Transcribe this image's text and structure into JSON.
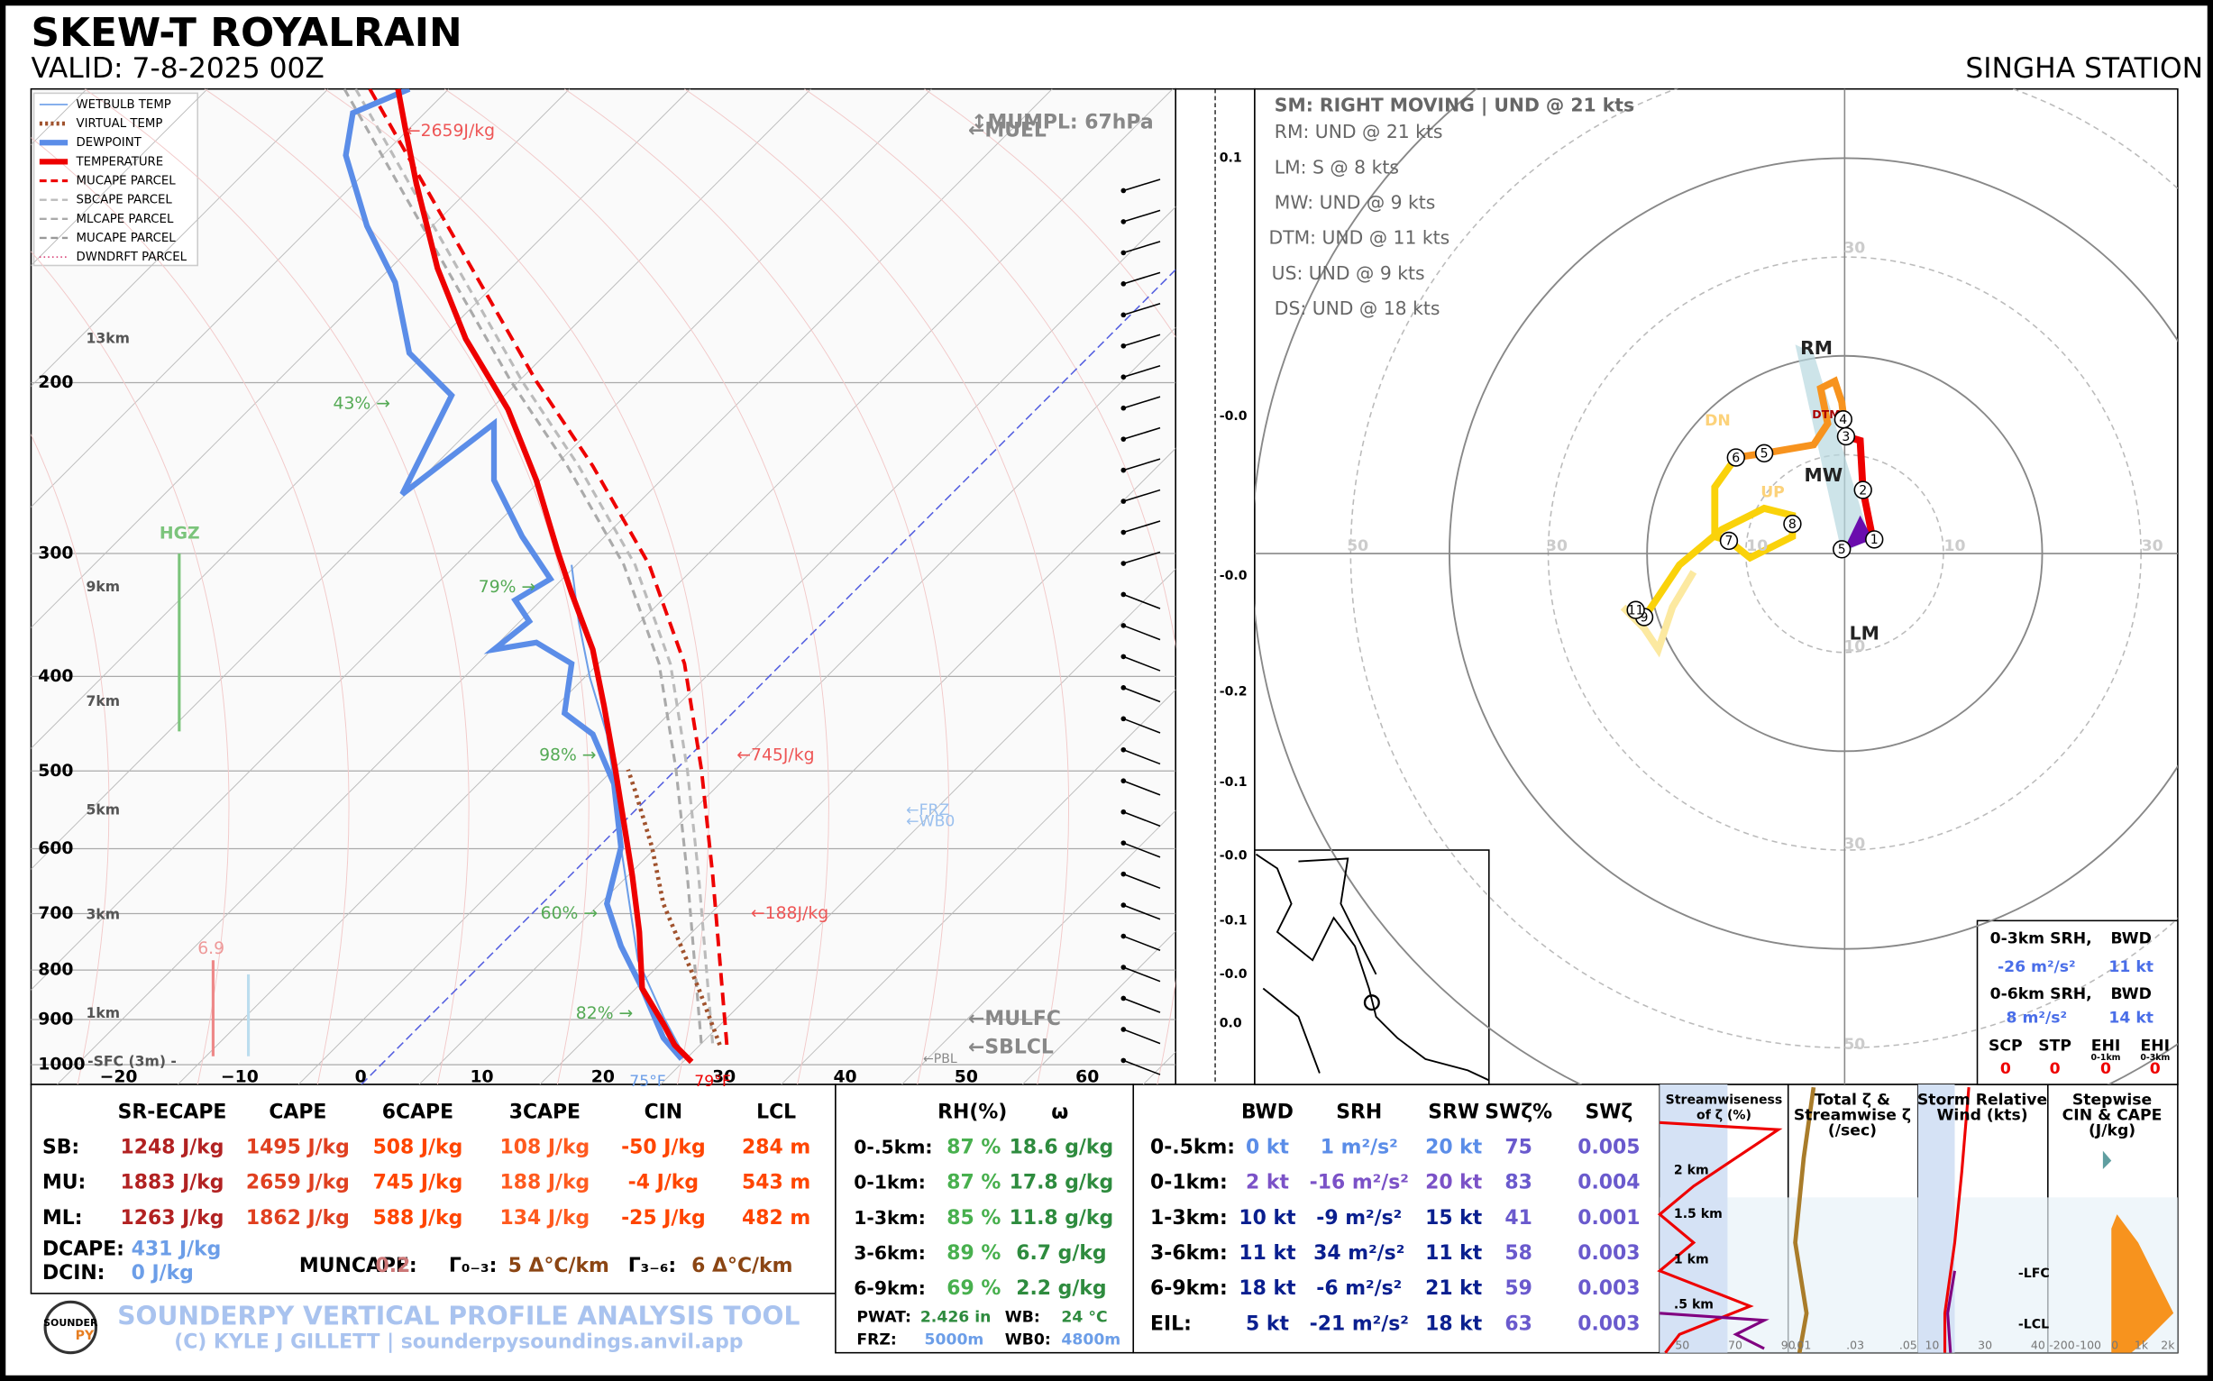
{
  "header": {
    "title": "SKEW-T ROYALRAIN",
    "valid": "VALID: 7-8-2025 00Z",
    "station": "SINGHA STATION"
  },
  "skewt": {
    "legend": [
      "WETBULB TEMP",
      "VIRTUAL TEMP",
      "DEWPOINT",
      "TEMPERATURE",
      "MUCAPE PARCEL",
      "SBCAPE PARCEL",
      "MLCAPE PARCEL",
      "MUCAPE PARCEL",
      "DWNDRFT PARCEL"
    ],
    "pressure_labels": [
      "200",
      "300",
      "400",
      "500",
      "600",
      "700",
      "800",
      "900",
      "1000"
    ],
    "temperature_labels": [
      "−20",
      "−10",
      "0",
      "10",
      "20",
      "30",
      "40",
      "50",
      "60"
    ],
    "height_labels": [
      "13km",
      "9km",
      "7km",
      "5km",
      "3km",
      "1km",
      "-SFC (3m) -"
    ],
    "annotations": [
      "←2659J/kg",
      "43% →",
      "79% →",
      "98% →",
      "60% →",
      "82% →",
      "←745J/kg",
      "←188J/kg",
      "HGZ",
      "6.9",
      "↕MUMPL: 67hPa",
      "←MUEL",
      "←FRZ",
      "←WB0",
      "←MULFC",
      "←SBLCL",
      "←PBL",
      "75°F",
      "79°F"
    ],
    "omega_labels": [
      "0.1",
      "-0.0",
      "-0.0",
      "-0.2",
      "-0.1",
      "-0.0",
      "-0.1",
      "-0.0",
      "0.0"
    ]
  },
  "hodograph": {
    "title": "SM: RIGHT MOVING | UND @ 21 kts",
    "motions": [
      "RM: UND @ 21 kts",
      "LM: S @ 8 kts",
      "MW: UND @ 9 kts",
      "DTM: UND @ 11 kts",
      "US: UND @ 9 kts",
      "DS: UND @ 18 kts"
    ],
    "ring_labels": [
      "30",
      "50",
      "30",
      "10",
      "10",
      "30",
      "10",
      "30",
      "50"
    ],
    "labels": [
      "RM",
      "MW",
      "LM",
      "DN",
      "UP",
      "DTM"
    ],
    "points": [
      "1",
      "2",
      "3",
      "4",
      "5",
      "5",
      "6",
      "7",
      "8",
      "9",
      "11"
    ]
  },
  "srh_box": {
    "rows": [
      [
        "0-3km SRH,",
        "BWD"
      ],
      [
        "-26 m²/s²",
        "11 kt"
      ],
      [
        "0-6km SRH,",
        "BWD"
      ],
      [
        "8 m²/s²",
        "14 kt"
      ]
    ],
    "indices": [
      "SCP",
      "STP",
      "EHI",
      "EHI"
    ],
    "index_subs": [
      "0-1km",
      "0-3km"
    ],
    "index_values": [
      "0",
      "0",
      "0",
      "0"
    ]
  },
  "thermo_table": {
    "header": [
      "SR-ECAPE",
      "CAPE",
      "6CAPE",
      "3CAPE",
      "CIN",
      "LCL"
    ],
    "rows": [
      [
        "SB:",
        "1248 J/kg",
        "1495 J/kg",
        "508 J/kg",
        "108 J/kg",
        "-50 J/kg",
        "284 m"
      ],
      [
        "MU:",
        "1883 J/kg",
        "2659 J/kg",
        "745 J/kg",
        "188 J/kg",
        "-4 J/kg",
        "543 m"
      ],
      [
        "ML:",
        "1263 J/kg",
        "1862 J/kg",
        "588 J/kg",
        "134 J/kg",
        "-25 J/kg",
        "482 m"
      ]
    ],
    "extras": [
      "DCAPE:",
      "431 J/kg",
      "DCIN:",
      "0 J/kg",
      "MUNCAPE:",
      "0.2",
      "Γ₀₋₃:",
      "5 Δ°C/km",
      "Γ₃₋₆:",
      "6 Δ°C/km"
    ]
  },
  "moisture_table": {
    "header": [
      "RH(%)",
      "ω"
    ],
    "rows": [
      [
        "0-.5km:",
        "87 %",
        "18.6 g/kg"
      ],
      [
        "0-1km:",
        "87 %",
        "17.8 g/kg"
      ],
      [
        "1-3km:",
        "85 %",
        "11.8 g/kg"
      ],
      [
        "3-6km:",
        "89 %",
        "6.7 g/kg"
      ],
      [
        "6-9km:",
        "69 %",
        "2.2 g/kg"
      ]
    ],
    "extras": [
      "PWAT:",
      "2.426 in",
      "WB:",
      "24 °C",
      "FRZ:",
      "5000m",
      "WB0:",
      "4800m"
    ]
  },
  "kinematic_table": {
    "header": [
      "BWD",
      "SRH",
      "SRW",
      "SWζ%",
      "SWζ"
    ],
    "rows": [
      [
        "0-.5km:",
        "0 kt",
        "1 m²/s²",
        "20 kt",
        "75",
        "0.005"
      ],
      [
        "0-1km:",
        "2 kt",
        "-16 m²/s²",
        "20 kt",
        "83",
        "0.004"
      ],
      [
        "1-3km:",
        "10 kt",
        "-9 m²/s²",
        "15 kt",
        "41",
        "0.001"
      ],
      [
        "3-6km:",
        "11 kt",
        "34 m²/s²",
        "11 kt",
        "58",
        "0.003"
      ],
      [
        "6-9km:",
        "18 kt",
        "-6 m²/s²",
        "21 kt",
        "59",
        "0.003"
      ],
      [
        "EIL:",
        "5 kt",
        "-21 m²/s²",
        "18 kt",
        "63",
        "0.003"
      ]
    ]
  },
  "insets": {
    "titles": [
      [
        "Streamwiseness",
        "of ζ (%)"
      ],
      [
        "Total ζ &",
        "Streamwise ζ",
        "(/sec)"
      ],
      [
        "Storm Relative",
        "Wind (kts)"
      ],
      [
        "Stepwise",
        "CIN & CAPE",
        "(J/kg)"
      ]
    ],
    "height_labels": [
      "2 km",
      "1.5 km",
      "1 km",
      ".5 km"
    ],
    "level_labels": [
      "-LFC",
      "-LCL"
    ],
    "axis_labels": [
      [
        "50",
        "70",
        "90"
      ],
      [
        ".01",
        ".03",
        ".05"
      ],
      [
        "10",
        "30",
        "40"
      ],
      [
        "-200",
        "-100",
        "0",
        "1k",
        "2k"
      ]
    ]
  },
  "footer": {
    "logo": [
      "SOUNDER",
      "PY"
    ],
    "title": "SOUNDERPY VERTICAL PROFILE ANALYSIS TOOL",
    "credit": "(C) KYLE J GILLETT | sounderpysoundings.anvil.app"
  }
}
